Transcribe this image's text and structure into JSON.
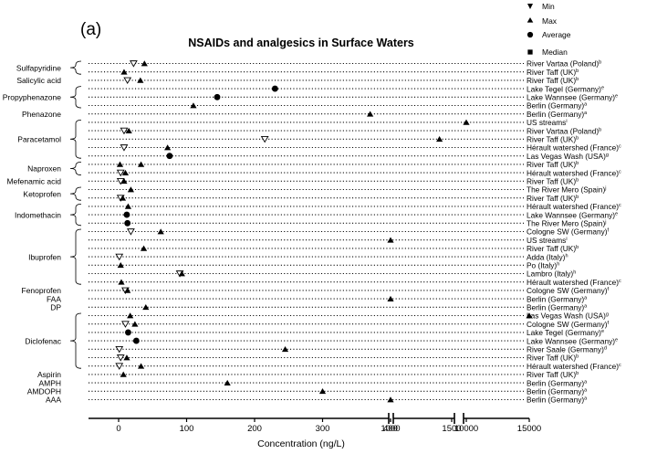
{
  "chart_data": {
    "type": "scatter",
    "panel_label": "(a)",
    "title": "NSAIDs and analgesics in Surface Waters",
    "xlabel": "Concentration (ng/L)",
    "x_axis": {
      "scale": "broken-linear",
      "segments": [
        {
          "range": [
            0,
            400
          ],
          "ticks": [
            0,
            100,
            200,
            300,
            400
          ]
        },
        {
          "range": [
            1000,
            1500
          ],
          "ticks": [
            1000,
            1500
          ]
        },
        {
          "range": [
            10000,
            15000
          ],
          "ticks": [
            10000,
            15000
          ]
        }
      ]
    },
    "grid": "dotted horizontal rows",
    "legend": {
      "placement": "top-right",
      "entries": [
        {
          "symbol": "triangle-down",
          "label": "Min"
        },
        {
          "symbol": "triangle-up",
          "label": "Max"
        },
        {
          "symbol": "circle",
          "label": "Average"
        },
        {
          "symbol": "square",
          "label": "Median"
        }
      ]
    },
    "rows": [
      {
        "site": "River Vartaa (Poland)",
        "sup": "b",
        "points": [
          {
            "s": "min",
            "x": 22
          },
          {
            "s": "max",
            "x": 38
          }
        ]
      },
      {
        "site": "River Taff (UK)",
        "sup": "b",
        "points": [
          {
            "s": "max",
            "x": 8
          }
        ]
      },
      {
        "site": "River Taff (UK)",
        "sup": "b",
        "points": [
          {
            "s": "min",
            "x": 13
          },
          {
            "s": "max",
            "x": 32
          }
        ]
      },
      {
        "site": "Lake Tegel (Germany)",
        "sup": "e",
        "points": [
          {
            "s": "avg",
            "x": 230
          }
        ]
      },
      {
        "site": "Lake Wannsee (Germany)",
        "sup": "e",
        "points": [
          {
            "s": "avg",
            "x": 145
          }
        ]
      },
      {
        "site": "Berlin (Germany)",
        "sup": "a",
        "points": [
          {
            "s": "max",
            "x": 110
          }
        ]
      },
      {
        "site": "Berlin (Germany)",
        "sup": "a",
        "points": [
          {
            "s": "max",
            "x": 370
          }
        ]
      },
      {
        "site": "US streams",
        "sup": "i",
        "points": [
          {
            "s": "max",
            "x": 10000
          }
        ]
      },
      {
        "site": "River Vartaa (Poland)",
        "sup": "b",
        "points": [
          {
            "s": "min",
            "x": 8
          },
          {
            "s": "max",
            "x": 15
          }
        ]
      },
      {
        "site": "River Taff (UK)",
        "sup": "b",
        "points": [
          {
            "s": "min",
            "x": 215
          },
          {
            "s": "max",
            "x": 1400
          }
        ]
      },
      {
        "site": "Hérault watershed (France)",
        "sup": "c",
        "points": [
          {
            "s": "min",
            "x": 8
          },
          {
            "s": "max",
            "x": 72
          }
        ]
      },
      {
        "site": "Las Vegas Wash (USA)",
        "sup": "g",
        "points": [
          {
            "s": "avg",
            "x": 75
          }
        ]
      },
      {
        "site": "River Taff (UK)",
        "sup": "b",
        "points": [
          {
            "s": "max",
            "x": 2
          },
          {
            "s": "max",
            "x": 33
          }
        ]
      },
      {
        "site": "Hérault watershed (France)",
        "sup": "c",
        "points": [
          {
            "s": "min",
            "x": 3
          },
          {
            "s": "max",
            "x": 10
          }
        ]
      },
      {
        "site": "River Taff (UK)",
        "sup": "b",
        "points": [
          {
            "s": "min",
            "x": 3
          },
          {
            "s": "max",
            "x": 8
          }
        ]
      },
      {
        "site": "The River Mero (Spain)",
        "sup": "j",
        "points": [
          {
            "s": "max",
            "x": 18
          }
        ]
      },
      {
        "site": "River Taff (UK)",
        "sup": "b",
        "points": [
          {
            "s": "min",
            "x": 3
          },
          {
            "s": "max",
            "x": 6
          }
        ]
      },
      {
        "site": "Hérault watershed (France)",
        "sup": "c",
        "points": [
          {
            "s": "max",
            "x": 14
          }
        ]
      },
      {
        "site": "Lake Wannsee (Germany)",
        "sup": "e",
        "points": [
          {
            "s": "avg",
            "x": 12
          }
        ]
      },
      {
        "site": "The River Mero (Spain)",
        "sup": "j",
        "points": [
          {
            "s": "avg",
            "x": 13
          }
        ]
      },
      {
        "site": "Cologne SW (Germany)",
        "sup": "f",
        "points": [
          {
            "s": "min",
            "x": 18
          },
          {
            "s": "max",
            "x": 62
          }
        ]
      },
      {
        "site": "US streams",
        "sup": "i",
        "points": [
          {
            "s": "max",
            "x": 1000
          }
        ]
      },
      {
        "site": "River Taff (UK)",
        "sup": "b",
        "points": [
          {
            "s": "max",
            "x": 37
          }
        ]
      },
      {
        "site": "Adda (Italy)",
        "sup": "h",
        "points": [
          {
            "s": "min",
            "x": 1
          }
        ]
      },
      {
        "site": "Po (Italy)",
        "sup": "h",
        "points": [
          {
            "s": "max",
            "x": 3
          }
        ]
      },
      {
        "site": "Lambro (Italy)",
        "sup": "h",
        "points": [
          {
            "s": "min",
            "x": 90
          },
          {
            "s": "max",
            "x": 93
          }
        ]
      },
      {
        "site": "Hérault watershed (France)",
        "sup": "c",
        "points": [
          {
            "s": "max",
            "x": 4
          }
        ]
      },
      {
        "site": "Cologne SW (Germany)",
        "sup": "f",
        "points": [
          {
            "s": "min",
            "x": 10
          },
          {
            "s": "max",
            "x": 13
          }
        ]
      },
      {
        "site": "Berlin (Germany)",
        "sup": "a",
        "points": [
          {
            "s": "max",
            "x": 1000
          }
        ]
      },
      {
        "site": "Berlin (Germany)",
        "sup": "a",
        "points": [
          {
            "s": "max",
            "x": 40
          }
        ]
      },
      {
        "site": "Las Vegas Wash (USA)",
        "sup": "g",
        "points": [
          {
            "s": "max",
            "x": 17
          },
          {
            "s": "max",
            "x": 15000
          }
        ]
      },
      {
        "site": "Cologne SW (Germany)",
        "sup": "f",
        "points": [
          {
            "s": "min",
            "x": 10
          },
          {
            "s": "max",
            "x": 24
          }
        ]
      },
      {
        "site": "Lake Tegel (Germany)",
        "sup": "e",
        "points": [
          {
            "s": "avg",
            "x": 14
          }
        ]
      },
      {
        "site": "Lake Wannsee (Germany)",
        "sup": "e",
        "points": [
          {
            "s": "avg",
            "x": 26
          }
        ]
      },
      {
        "site": "River Saale (Germany)",
        "sup": "d",
        "points": [
          {
            "s": "min",
            "x": 1
          },
          {
            "s": "max",
            "x": 245
          }
        ]
      },
      {
        "site": "River Taff (UK)",
        "sup": "b",
        "points": [
          {
            "s": "min",
            "x": 3
          },
          {
            "s": "max",
            "x": 12
          }
        ]
      },
      {
        "site": "Hérault watershed (France)",
        "sup": "c",
        "points": [
          {
            "s": "min",
            "x": 1
          },
          {
            "s": "max",
            "x": 33
          }
        ]
      },
      {
        "site": "River Taff (UK)",
        "sup": "b",
        "points": [
          {
            "s": "max",
            "x": 7
          }
        ]
      },
      {
        "site": "Berlin (Germany)",
        "sup": "a",
        "points": [
          {
            "s": "max",
            "x": 160
          }
        ]
      },
      {
        "site": "Berlin (Germany)",
        "sup": "a",
        "points": [
          {
            "s": "max",
            "x": 300
          }
        ]
      },
      {
        "site": "Berlin (Germany)",
        "sup": "a",
        "points": [
          {
            "s": "max",
            "x": 1000
          }
        ]
      }
    ],
    "compounds": [
      {
        "name": "Sulfapyridine",
        "rows": [
          0,
          1
        ]
      },
      {
        "name": "Salicylic acid",
        "rows": [
          2
        ]
      },
      {
        "name": "Propyphenazone",
        "rows": [
          3,
          5
        ]
      },
      {
        "name": "Phenazone",
        "rows": [
          6
        ]
      },
      {
        "name": "Paracetamol",
        "rows": [
          7,
          11
        ]
      },
      {
        "name": "Naproxen",
        "rows": [
          12,
          13
        ]
      },
      {
        "name": "Mefenamic acid",
        "rows": [
          14
        ]
      },
      {
        "name": "Ketoprofen",
        "rows": [
          15,
          16
        ]
      },
      {
        "name": "Indomethacin",
        "rows": [
          17,
          19
        ]
      },
      {
        "name": "Ibuprofen",
        "rows": [
          20,
          26
        ]
      },
      {
        "name": "Fenoprofen",
        "rows": [
          27
        ]
      },
      {
        "name": "FAA",
        "rows": [
          28
        ]
      },
      {
        "name": "DP",
        "rows": [
          29
        ]
      },
      {
        "name": "Diclofenac",
        "rows": [
          30,
          36
        ]
      },
      {
        "name": "Aspirin",
        "rows": [
          37
        ]
      },
      {
        "name": "AMPH",
        "rows": [
          38
        ]
      },
      {
        "name": "AMDOPH",
        "rows": [
          39
        ]
      },
      {
        "name": "AAA",
        "rows": [
          40
        ]
      }
    ]
  }
}
